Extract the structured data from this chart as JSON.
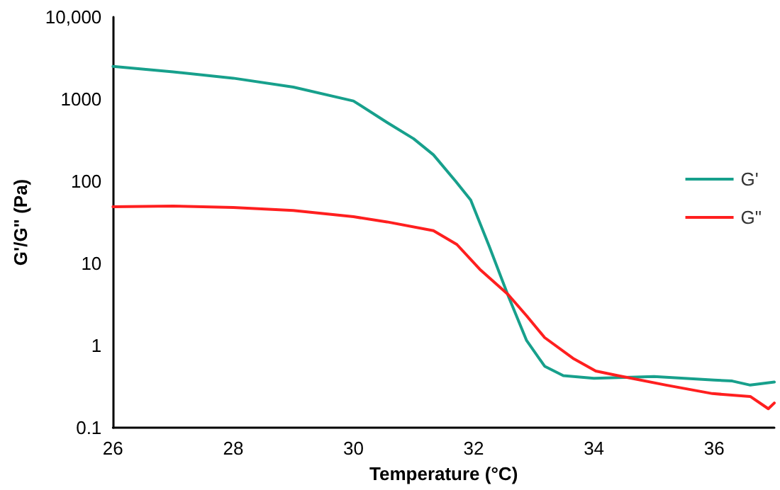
{
  "chart_data": {
    "type": "line",
    "xlabel": "Temperature (°C)",
    "ylabel": "G'/G\" (Pa)",
    "xlim": [
      26,
      37
    ],
    "xticks": [
      26,
      28,
      30,
      32,
      34,
      36
    ],
    "ylim": [
      0.1,
      10000
    ],
    "yticks": [
      0.1,
      1,
      10,
      100,
      1000,
      {
        "value": 10000,
        "label": "10,000"
      }
    ],
    "log": "y",
    "grid": false,
    "legend": "right",
    "marker": "none",
    "line_style": "solid",
    "series": [
      {
        "name": "G'",
        "color": "#17a08c",
        "x": [
          26,
          27,
          28,
          29,
          30,
          30.56,
          31,
          31.33,
          31.7,
          31.95,
          32.26,
          32.57,
          32.88,
          33.18,
          33.49,
          34,
          34.5,
          35,
          35.5,
          36,
          36.3,
          36.6,
          37
        ],
        "values": [
          2500,
          2150,
          1800,
          1400,
          950,
          520,
          330,
          210,
          100,
          59,
          16,
          4.1,
          1.15,
          0.56,
          0.43,
          0.4,
          0.41,
          0.42,
          0.4,
          0.38,
          0.37,
          0.33,
          0.36
        ]
      },
      {
        "name": "G\"",
        "color": "#ff1f1f",
        "x": [
          26,
          27,
          28,
          29,
          30,
          30.56,
          31.33,
          31.72,
          32.1,
          32.57,
          32.88,
          33.18,
          33.65,
          34.03,
          34.4,
          35.2,
          35.97,
          36.6,
          36.9,
          37
        ],
        "values": [
          49,
          50,
          48,
          44,
          37,
          32,
          25,
          17,
          8.5,
          4.2,
          2.3,
          1.25,
          0.7,
          0.49,
          0.43,
          0.33,
          0.26,
          0.24,
          0.17,
          0.2
        ]
      }
    ]
  }
}
